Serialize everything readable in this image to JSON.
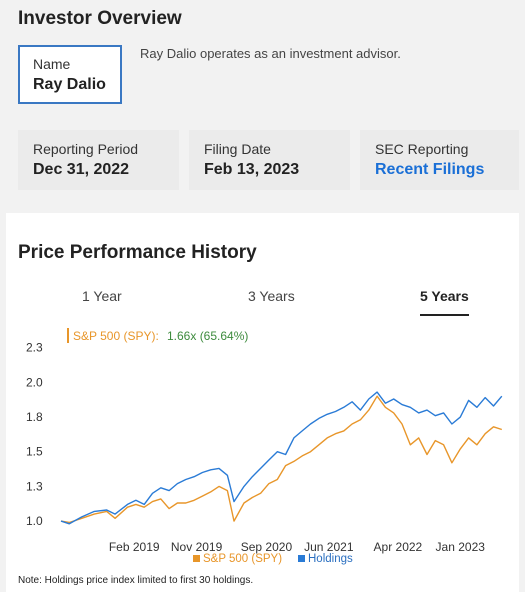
{
  "overview": {
    "title": "Investor Overview",
    "name_label": "Name",
    "name_value": "Ray Dalio",
    "description": "Ray Dalio operates as an investment advisor.",
    "cards": [
      {
        "label": "Reporting Period",
        "value": "Dec 31, 2022"
      },
      {
        "label": "Filing Date",
        "value": "Feb 13, 2023"
      },
      {
        "label": "SEC Reporting",
        "value": "Recent Filings"
      }
    ]
  },
  "performance": {
    "title": "Price Performance History",
    "tabs": [
      "1 Year",
      "3 Years",
      "5 Years"
    ],
    "active_tab": "5 Years",
    "note": "Note: Holdings price index limited to first 30 holdings."
  },
  "colors": {
    "spy": "#e8962a",
    "holdings": "#2a7bd6",
    "link": "#1a6fd6",
    "accent_border": "#3a78c3",
    "tooltip_value": "#3d8b3d"
  },
  "chart_data": {
    "type": "line",
    "tooltip": {
      "label": "S&P 500 (SPY):",
      "value": "1.66x (65.64%)"
    },
    "y_ticks": [
      "1.0",
      "1.3",
      "1.5",
      "1.8",
      "2.0",
      "2.3"
    ],
    "y_tick_values": [
      1.0,
      1.25,
      1.5,
      1.75,
      2.0,
      2.25
    ],
    "ylim": [
      0.95,
      2.32
    ],
    "x_ticks": [
      "Feb 2019",
      "Nov 2019",
      "Sep 2020",
      "Jun 2021",
      "Apr 2022",
      "Jan 2023"
    ],
    "x_tick_values": [
      2019.08,
      2019.83,
      2020.67,
      2021.42,
      2022.25,
      2023.0
    ],
    "xlim": [
      2018.2,
      2023.55
    ],
    "legend": [
      "S&P 500 (SPY)",
      "Holdings"
    ],
    "series": [
      {
        "name": "S&P 500 (SPY)",
        "x": [
          2018.2,
          2018.3,
          2018.45,
          2018.6,
          2018.75,
          2018.85,
          2019.0,
          2019.1,
          2019.2,
          2019.3,
          2019.4,
          2019.5,
          2019.6,
          2019.7,
          2019.8,
          2019.9,
          2020.0,
          2020.1,
          2020.2,
          2020.28,
          2020.4,
          2020.5,
          2020.6,
          2020.7,
          2020.8,
          2020.9,
          2021.0,
          2021.1,
          2021.2,
          2021.3,
          2021.4,
          2021.5,
          2021.6,
          2021.7,
          2021.8,
          2021.9,
          2022.0,
          2022.1,
          2022.2,
          2022.3,
          2022.4,
          2022.5,
          2022.6,
          2022.7,
          2022.8,
          2022.9,
          2023.0,
          2023.1,
          2023.2,
          2023.3,
          2023.4,
          2023.5
        ],
        "values": [
          1.0,
          0.99,
          1.02,
          1.05,
          1.07,
          1.02,
          1.1,
          1.12,
          1.1,
          1.14,
          1.16,
          1.09,
          1.13,
          1.13,
          1.15,
          1.18,
          1.21,
          1.25,
          1.22,
          1.0,
          1.13,
          1.17,
          1.2,
          1.27,
          1.3,
          1.4,
          1.43,
          1.47,
          1.5,
          1.55,
          1.6,
          1.63,
          1.65,
          1.7,
          1.73,
          1.8,
          1.9,
          1.82,
          1.78,
          1.7,
          1.55,
          1.6,
          1.48,
          1.58,
          1.55,
          1.42,
          1.52,
          1.6,
          1.55,
          1.63,
          1.68,
          1.66
        ]
      },
      {
        "name": "Holdings",
        "x": [
          2018.2,
          2018.3,
          2018.45,
          2018.6,
          2018.75,
          2018.85,
          2019.0,
          2019.1,
          2019.2,
          2019.3,
          2019.4,
          2019.5,
          2019.6,
          2019.7,
          2019.8,
          2019.9,
          2020.0,
          2020.1,
          2020.2,
          2020.28,
          2020.4,
          2020.5,
          2020.6,
          2020.7,
          2020.8,
          2020.9,
          2021.0,
          2021.1,
          2021.2,
          2021.3,
          2021.4,
          2021.5,
          2021.6,
          2021.7,
          2021.8,
          2021.9,
          2022.0,
          2022.1,
          2022.2,
          2022.3,
          2022.4,
          2022.5,
          2022.6,
          2022.7,
          2022.8,
          2022.9,
          2023.0,
          2023.1,
          2023.2,
          2023.3,
          2023.4,
          2023.5
        ],
        "values": [
          1.0,
          0.98,
          1.03,
          1.07,
          1.08,
          1.05,
          1.12,
          1.15,
          1.12,
          1.2,
          1.24,
          1.22,
          1.27,
          1.3,
          1.32,
          1.35,
          1.37,
          1.38,
          1.33,
          1.14,
          1.25,
          1.32,
          1.38,
          1.44,
          1.5,
          1.48,
          1.6,
          1.65,
          1.7,
          1.74,
          1.77,
          1.79,
          1.82,
          1.86,
          1.8,
          1.88,
          1.93,
          1.85,
          1.88,
          1.84,
          1.82,
          1.78,
          1.8,
          1.76,
          1.78,
          1.7,
          1.75,
          1.87,
          1.82,
          1.89,
          1.83,
          1.9
        ]
      }
    ]
  }
}
